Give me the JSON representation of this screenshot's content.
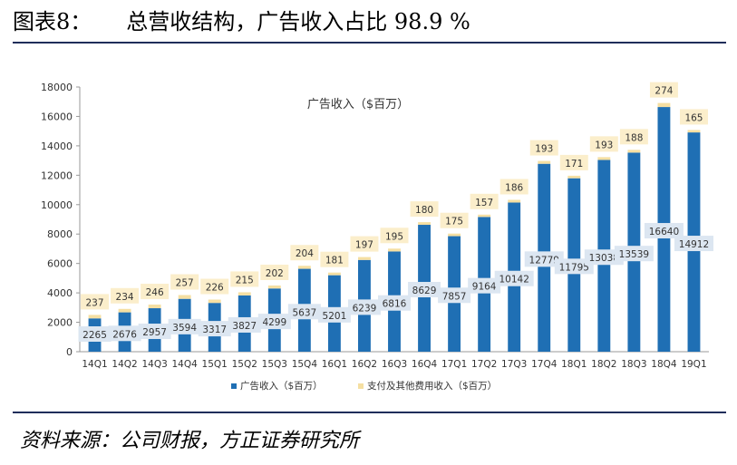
{
  "figure": {
    "number": "图表8：",
    "title": "总营收结构，广告收入占比 98.9 %",
    "source": "资料来源：公司财报，方正证券研究所"
  },
  "chart_data": {
    "type": "bar",
    "stacked": true,
    "title": "广告收入（$百万）",
    "xlabel": "",
    "ylabel": "",
    "ylim": [
      0,
      18000
    ],
    "yticks": [
      0,
      2000,
      4000,
      6000,
      8000,
      10000,
      12000,
      14000,
      16000,
      18000
    ],
    "grid": false,
    "legend_position": "bottom",
    "categories": [
      "14Q1",
      "14Q2",
      "14Q3",
      "14Q4",
      "15Q1",
      "15Q2",
      "15Q3",
      "15Q4",
      "16Q1",
      "16Q2",
      "16Q3",
      "16Q4",
      "17Q1",
      "17Q2",
      "17Q3",
      "17Q4",
      "18Q1",
      "18Q2",
      "18Q3",
      "18Q4",
      "19Q1"
    ],
    "series": [
      {
        "name": "广告收入（$百万）",
        "color": "#1f6fb4",
        "values": [
          2265,
          2676,
          2957,
          3594,
          3317,
          3827,
          4299,
          5637,
          5201,
          6239,
          6816,
          8629,
          7857,
          9164,
          10142,
          12779,
          11795,
          13038,
          13539,
          16640,
          14912
        ]
      },
      {
        "name": "支付及其他费用收入（$百万）",
        "color": "#f5dfa2",
        "values": [
          237,
          234,
          246,
          257,
          226,
          215,
          202,
          204,
          181,
          197,
          195,
          180,
          175,
          157,
          186,
          193,
          171,
          193,
          188,
          274,
          165
        ]
      }
    ],
    "label_box_color": "#dce6f1",
    "label_box_color_top": "#fbeecb"
  }
}
